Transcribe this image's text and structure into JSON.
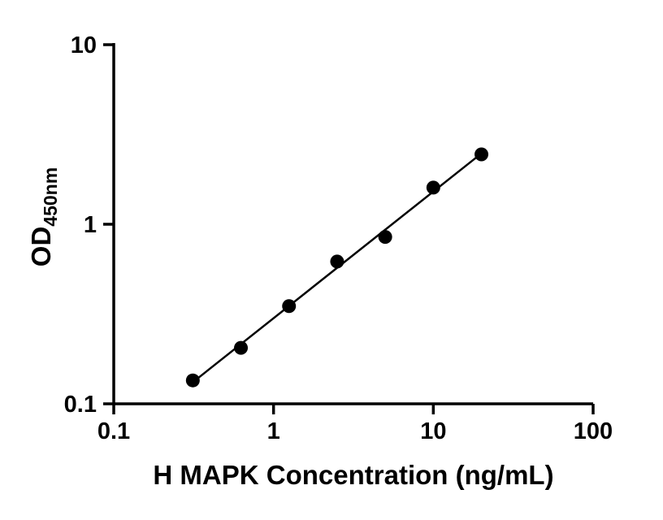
{
  "chart_data": {
    "type": "scatter",
    "title": "",
    "xlabel": "H MAPK Concentration (ng/mL)",
    "ylabel_main": "OD",
    "ylabel_sub": "450nm",
    "x_scale": "log",
    "y_scale": "log",
    "xlim": [
      0.1,
      100
    ],
    "ylim": [
      0.1,
      10
    ],
    "grid": false,
    "legend": "none",
    "marker_color": "#000000",
    "line_color": "#000000",
    "x_ticks": [
      {
        "value": 0.1,
        "label": "0.1"
      },
      {
        "value": 1,
        "label": "1"
      },
      {
        "value": 10,
        "label": "10"
      },
      {
        "value": 100,
        "label": "100"
      }
    ],
    "y_ticks": [
      {
        "value": 0.1,
        "label": "0.1"
      },
      {
        "value": 1,
        "label": "1"
      },
      {
        "value": 10,
        "label": "10"
      }
    ],
    "points": [
      {
        "x": 0.3125,
        "y": 0.135
      },
      {
        "x": 0.625,
        "y": 0.205
      },
      {
        "x": 1.25,
        "y": 0.35
      },
      {
        "x": 2.5,
        "y": 0.62
      },
      {
        "x": 5,
        "y": 0.85
      },
      {
        "x": 10,
        "y": 1.6
      },
      {
        "x": 20,
        "y": 2.45
      }
    ],
    "trendline": "log-log linear fit through data points"
  }
}
